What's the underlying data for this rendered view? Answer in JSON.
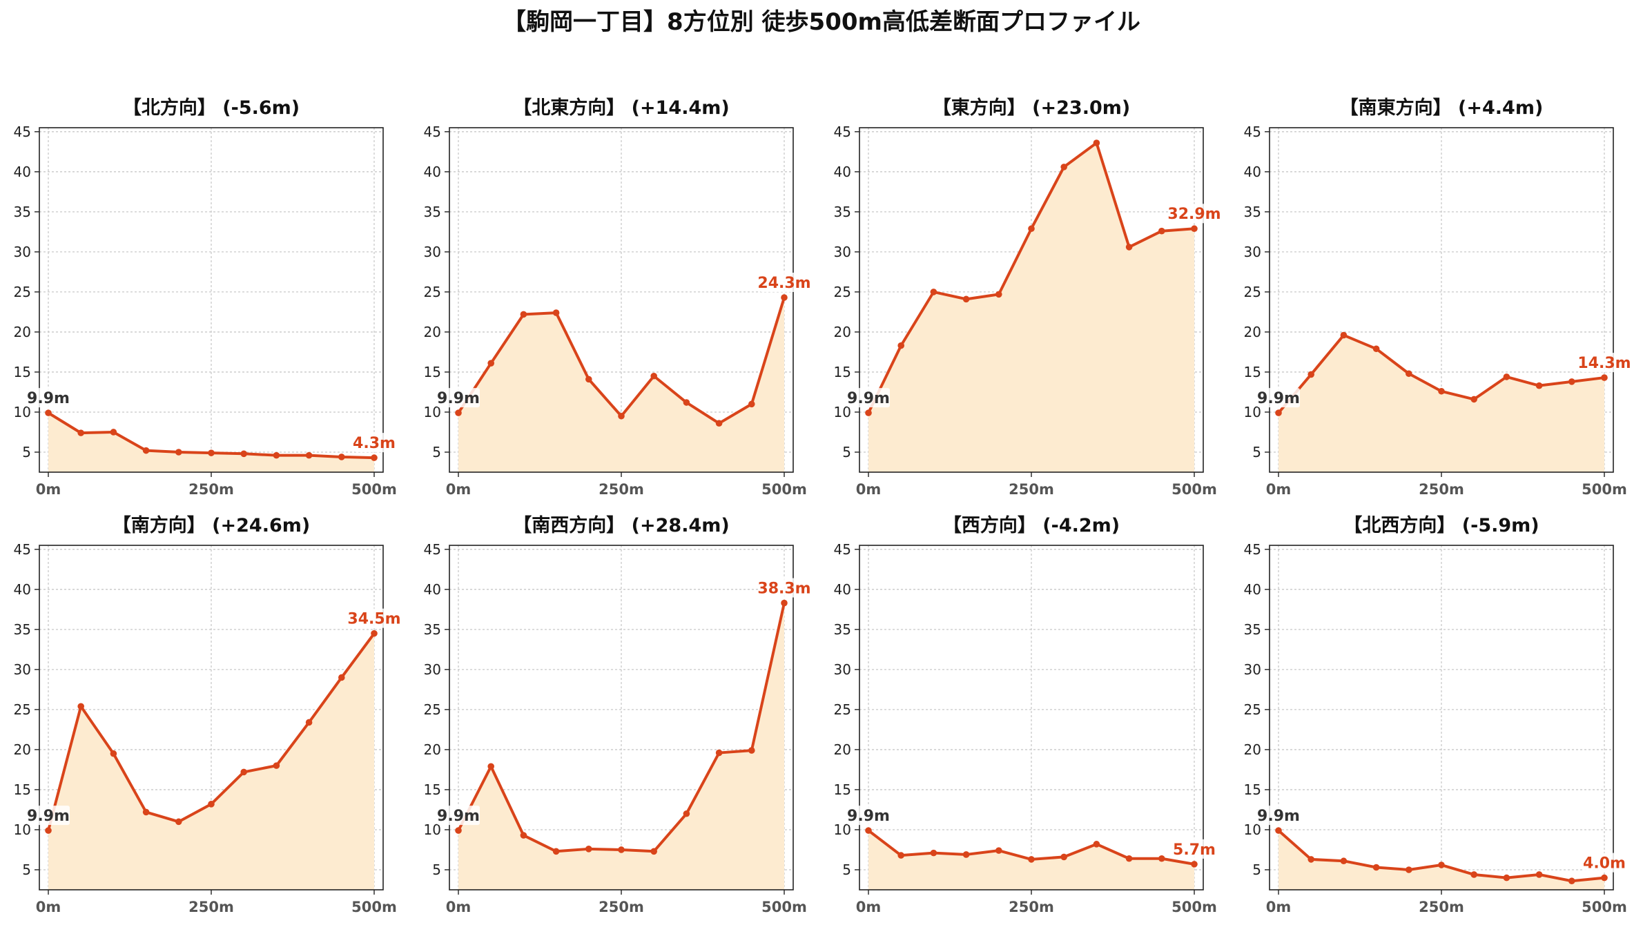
{
  "title": "【駒岡一丁目】8方位別 徒歩500m高低差断面プロファイル",
  "colors": {
    "line": "#d9441a",
    "fill": "#fdebd0",
    "grid": "#c8c8c8",
    "axis": "#222222",
    "start_label": "#333333",
    "end_label": "#d9441a"
  },
  "chart_data": [
    {
      "type": "area",
      "title": "【北方向】 (-5.6m)",
      "x": [
        0,
        50,
        100,
        150,
        200,
        250,
        300,
        350,
        400,
        450,
        500
      ],
      "values": [
        9.9,
        7.4,
        7.5,
        5.2,
        5.0,
        4.9,
        4.8,
        4.6,
        4.6,
        4.4,
        4.3
      ],
      "start_label": "9.9m",
      "end_label": "4.3m",
      "xticks": [
        "0m",
        "250m",
        "500m"
      ],
      "yticks": [
        "5",
        "10",
        "15",
        "20",
        "25",
        "30",
        "35",
        "40",
        "45"
      ],
      "xlim": [
        0,
        500
      ],
      "ylim": [
        2.5,
        45.5
      ],
      "grid": true
    },
    {
      "type": "area",
      "title": "【北東方向】 (+14.4m)",
      "x": [
        0,
        50,
        100,
        150,
        200,
        250,
        300,
        350,
        400,
        450,
        500
      ],
      "values": [
        9.9,
        16.1,
        22.2,
        22.4,
        14.1,
        9.5,
        14.5,
        11.2,
        8.6,
        11.0,
        24.3
      ],
      "start_label": "9.9m",
      "end_label": "24.3m",
      "xticks": [
        "0m",
        "250m",
        "500m"
      ],
      "yticks": [
        "5",
        "10",
        "15",
        "20",
        "25",
        "30",
        "35",
        "40",
        "45"
      ],
      "xlim": [
        0,
        500
      ],
      "ylim": [
        2.5,
        45.5
      ],
      "grid": true
    },
    {
      "type": "area",
      "title": "【東方向】 (+23.0m)",
      "x": [
        0,
        50,
        100,
        150,
        200,
        250,
        300,
        350,
        400,
        450,
        500
      ],
      "values": [
        9.9,
        18.3,
        25.0,
        24.1,
        24.7,
        32.9,
        40.6,
        43.6,
        30.6,
        32.6,
        32.9
      ],
      "start_label": "9.9m",
      "end_label": "32.9m",
      "xticks": [
        "0m",
        "250m",
        "500m"
      ],
      "yticks": [
        "5",
        "10",
        "15",
        "20",
        "25",
        "30",
        "35",
        "40",
        "45"
      ],
      "xlim": [
        0,
        500
      ],
      "ylim": [
        2.5,
        45.5
      ],
      "grid": true
    },
    {
      "type": "area",
      "title": "【南東方向】 (+4.4m)",
      "x": [
        0,
        50,
        100,
        150,
        200,
        250,
        300,
        350,
        400,
        450,
        500
      ],
      "values": [
        9.9,
        14.7,
        19.6,
        17.9,
        14.8,
        12.6,
        11.6,
        14.4,
        13.3,
        13.8,
        14.3
      ],
      "start_label": "9.9m",
      "end_label": "14.3m",
      "xticks": [
        "0m",
        "250m",
        "500m"
      ],
      "yticks": [
        "5",
        "10",
        "15",
        "20",
        "25",
        "30",
        "35",
        "40",
        "45"
      ],
      "xlim": [
        0,
        500
      ],
      "ylim": [
        2.5,
        45.5
      ],
      "grid": true
    },
    {
      "type": "area",
      "title": "【南方向】 (+24.6m)",
      "x": [
        0,
        50,
        100,
        150,
        200,
        250,
        300,
        350,
        400,
        450,
        500
      ],
      "values": [
        9.9,
        25.4,
        19.5,
        12.2,
        11.0,
        13.2,
        17.2,
        18.0,
        23.4,
        29.0,
        34.5
      ],
      "start_label": "9.9m",
      "end_label": "34.5m",
      "xticks": [
        "0m",
        "250m",
        "500m"
      ],
      "yticks": [
        "5",
        "10",
        "15",
        "20",
        "25",
        "30",
        "35",
        "40",
        "45"
      ],
      "xlim": [
        0,
        500
      ],
      "ylim": [
        2.5,
        45.5
      ],
      "grid": true
    },
    {
      "type": "area",
      "title": "【南西方向】 (+28.4m)",
      "x": [
        0,
        50,
        100,
        150,
        200,
        250,
        300,
        350,
        400,
        450,
        500
      ],
      "values": [
        9.9,
        17.9,
        9.3,
        7.3,
        7.6,
        7.5,
        7.3,
        12.0,
        19.6,
        19.9,
        38.3
      ],
      "start_label": "9.9m",
      "end_label": "38.3m",
      "xticks": [
        "0m",
        "250m",
        "500m"
      ],
      "yticks": [
        "5",
        "10",
        "15",
        "20",
        "25",
        "30",
        "35",
        "40",
        "45"
      ],
      "xlim": [
        0,
        500
      ],
      "ylim": [
        2.5,
        45.5
      ],
      "grid": true
    },
    {
      "type": "area",
      "title": "【西方向】 (-4.2m)",
      "x": [
        0,
        50,
        100,
        150,
        200,
        250,
        300,
        350,
        400,
        450,
        500
      ],
      "values": [
        9.9,
        6.8,
        7.1,
        6.9,
        7.4,
        6.3,
        6.6,
        8.2,
        6.4,
        6.4,
        5.7
      ],
      "start_label": "9.9m",
      "end_label": "5.7m",
      "xticks": [
        "0m",
        "250m",
        "500m"
      ],
      "yticks": [
        "5",
        "10",
        "15",
        "20",
        "25",
        "30",
        "35",
        "40",
        "45"
      ],
      "xlim": [
        0,
        500
      ],
      "ylim": [
        2.5,
        45.5
      ],
      "grid": true
    },
    {
      "type": "area",
      "title": "【北西方向】 (-5.9m)",
      "x": [
        0,
        50,
        100,
        150,
        200,
        250,
        300,
        350,
        400,
        450,
        500
      ],
      "values": [
        9.9,
        6.3,
        6.1,
        5.3,
        5.0,
        5.6,
        4.4,
        4.0,
        4.4,
        3.6,
        4.0
      ],
      "start_label": "9.9m",
      "end_label": "4.0m",
      "xticks": [
        "0m",
        "250m",
        "500m"
      ],
      "yticks": [
        "5",
        "10",
        "15",
        "20",
        "25",
        "30",
        "35",
        "40",
        "45"
      ],
      "xlim": [
        0,
        500
      ],
      "ylim": [
        2.5,
        45.5
      ],
      "grid": true
    }
  ]
}
